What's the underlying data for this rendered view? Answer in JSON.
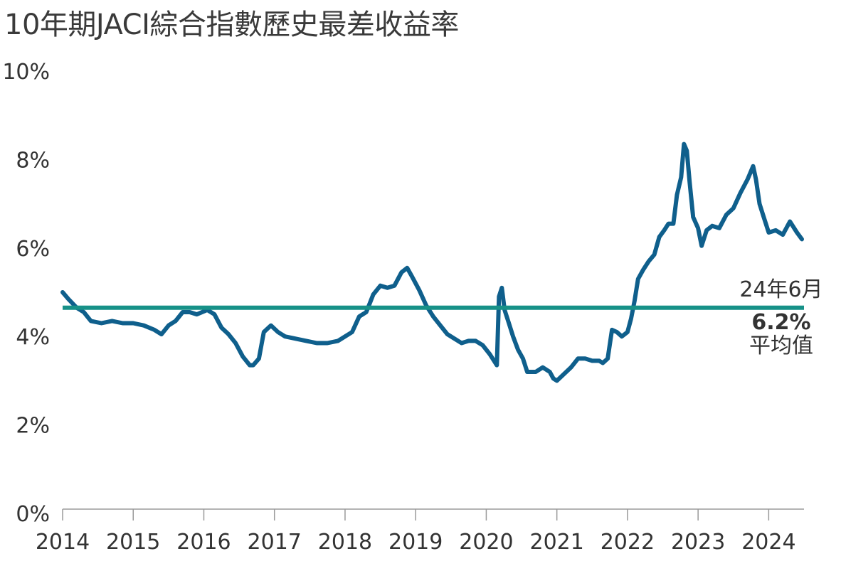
{
  "chart_data": {
    "type": "line",
    "title": "10年期JACI綜合指數歷史最差收益率",
    "xlabel": "",
    "ylabel": "",
    "xlim": [
      2014,
      2024.5
    ],
    "ylim": [
      0,
      10
    ],
    "y_ticks": [
      "0%",
      "2%",
      "4%",
      "6%",
      "8%",
      "10%"
    ],
    "y_tick_values": [
      0,
      2,
      4,
      6,
      8,
      10
    ],
    "x_ticks": [
      "2014",
      "2015",
      "2016",
      "2017",
      "2018",
      "2019",
      "2020",
      "2021",
      "2022",
      "2023",
      "2024"
    ],
    "x_tick_values": [
      2014,
      2015,
      2016,
      2017,
      2018,
      2019,
      2020,
      2021,
      2022,
      2023,
      2024
    ],
    "grid": false,
    "series": [
      {
        "color": "#0f5f8c",
        "points": [
          [
            2014.0,
            5.0
          ],
          [
            2014.08,
            4.85
          ],
          [
            2014.2,
            4.65
          ],
          [
            2014.3,
            4.55
          ],
          [
            2014.4,
            4.35
          ],
          [
            2014.55,
            4.3
          ],
          [
            2014.7,
            4.35
          ],
          [
            2014.85,
            4.3
          ],
          [
            2015.0,
            4.3
          ],
          [
            2015.15,
            4.25
          ],
          [
            2015.3,
            4.15
          ],
          [
            2015.4,
            4.05
          ],
          [
            2015.5,
            4.25
          ],
          [
            2015.6,
            4.35
          ],
          [
            2015.7,
            4.55
          ],
          [
            2015.8,
            4.55
          ],
          [
            2015.9,
            4.5
          ],
          [
            2016.05,
            4.6
          ],
          [
            2016.15,
            4.5
          ],
          [
            2016.25,
            4.2
          ],
          [
            2016.35,
            4.05
          ],
          [
            2016.45,
            3.85
          ],
          [
            2016.55,
            3.55
          ],
          [
            2016.65,
            3.35
          ],
          [
            2016.7,
            3.35
          ],
          [
            2016.78,
            3.5
          ],
          [
            2016.85,
            4.1
          ],
          [
            2016.95,
            4.25
          ],
          [
            2017.05,
            4.1
          ],
          [
            2017.15,
            4.0
          ],
          [
            2017.3,
            3.95
          ],
          [
            2017.45,
            3.9
          ],
          [
            2017.6,
            3.85
          ],
          [
            2017.75,
            3.85
          ],
          [
            2017.9,
            3.9
          ],
          [
            2018.0,
            4.0
          ],
          [
            2018.1,
            4.1
          ],
          [
            2018.2,
            4.45
          ],
          [
            2018.3,
            4.55
          ],
          [
            2018.35,
            4.75
          ],
          [
            2018.4,
            4.95
          ],
          [
            2018.5,
            5.15
          ],
          [
            2018.6,
            5.1
          ],
          [
            2018.7,
            5.15
          ],
          [
            2018.8,
            5.45
          ],
          [
            2018.88,
            5.55
          ],
          [
            2018.95,
            5.35
          ],
          [
            2019.05,
            5.05
          ],
          [
            2019.15,
            4.7
          ],
          [
            2019.25,
            4.45
          ],
          [
            2019.35,
            4.25
          ],
          [
            2019.45,
            4.05
          ],
          [
            2019.55,
            3.95
          ],
          [
            2019.65,
            3.85
          ],
          [
            2019.75,
            3.9
          ],
          [
            2019.85,
            3.9
          ],
          [
            2019.95,
            3.8
          ],
          [
            2020.05,
            3.6
          ],
          [
            2020.15,
            3.35
          ],
          [
            2020.18,
            4.9
          ],
          [
            2020.22,
            5.1
          ],
          [
            2020.26,
            4.6
          ],
          [
            2020.32,
            4.3
          ],
          [
            2020.38,
            4.0
          ],
          [
            2020.45,
            3.7
          ],
          [
            2020.52,
            3.5
          ],
          [
            2020.58,
            3.2
          ],
          [
            2020.7,
            3.2
          ],
          [
            2020.8,
            3.3
          ],
          [
            2020.9,
            3.2
          ],
          [
            2020.95,
            3.05
          ],
          [
            2021.0,
            3.0
          ],
          [
            2021.1,
            3.15
          ],
          [
            2021.2,
            3.3
          ],
          [
            2021.3,
            3.5
          ],
          [
            2021.4,
            3.5
          ],
          [
            2021.5,
            3.45
          ],
          [
            2021.6,
            3.45
          ],
          [
            2021.65,
            3.4
          ],
          [
            2021.72,
            3.5
          ],
          [
            2021.78,
            4.15
          ],
          [
            2021.85,
            4.1
          ],
          [
            2021.92,
            4.0
          ],
          [
            2022.0,
            4.1
          ],
          [
            2022.05,
            4.4
          ],
          [
            2022.1,
            4.8
          ],
          [
            2022.15,
            5.3
          ],
          [
            2022.22,
            5.5
          ],
          [
            2022.3,
            5.7
          ],
          [
            2022.38,
            5.85
          ],
          [
            2022.45,
            6.25
          ],
          [
            2022.52,
            6.4
          ],
          [
            2022.58,
            6.55
          ],
          [
            2022.65,
            6.55
          ],
          [
            2022.7,
            7.2
          ],
          [
            2022.76,
            7.6
          ],
          [
            2022.8,
            8.35
          ],
          [
            2022.84,
            8.2
          ],
          [
            2022.88,
            7.5
          ],
          [
            2022.93,
            6.7
          ],
          [
            2023.0,
            6.45
          ],
          [
            2023.05,
            6.05
          ],
          [
            2023.12,
            6.4
          ],
          [
            2023.2,
            6.5
          ],
          [
            2023.3,
            6.45
          ],
          [
            2023.4,
            6.75
          ],
          [
            2023.5,
            6.9
          ],
          [
            2023.6,
            7.25
          ],
          [
            2023.7,
            7.55
          ],
          [
            2023.78,
            7.85
          ],
          [
            2023.82,
            7.55
          ],
          [
            2023.87,
            7.0
          ],
          [
            2023.93,
            6.7
          ],
          [
            2024.0,
            6.35
          ],
          [
            2024.1,
            6.4
          ],
          [
            2024.2,
            6.3
          ],
          [
            2024.3,
            6.6
          ],
          [
            2024.4,
            6.35
          ],
          [
            2024.47,
            6.2
          ]
        ]
      }
    ],
    "reference_line": {
      "value": 4.65,
      "color": "#179188"
    },
    "annotation": {
      "line1": "24年6月",
      "line2": "6.2%",
      "line3": "平均值"
    }
  }
}
